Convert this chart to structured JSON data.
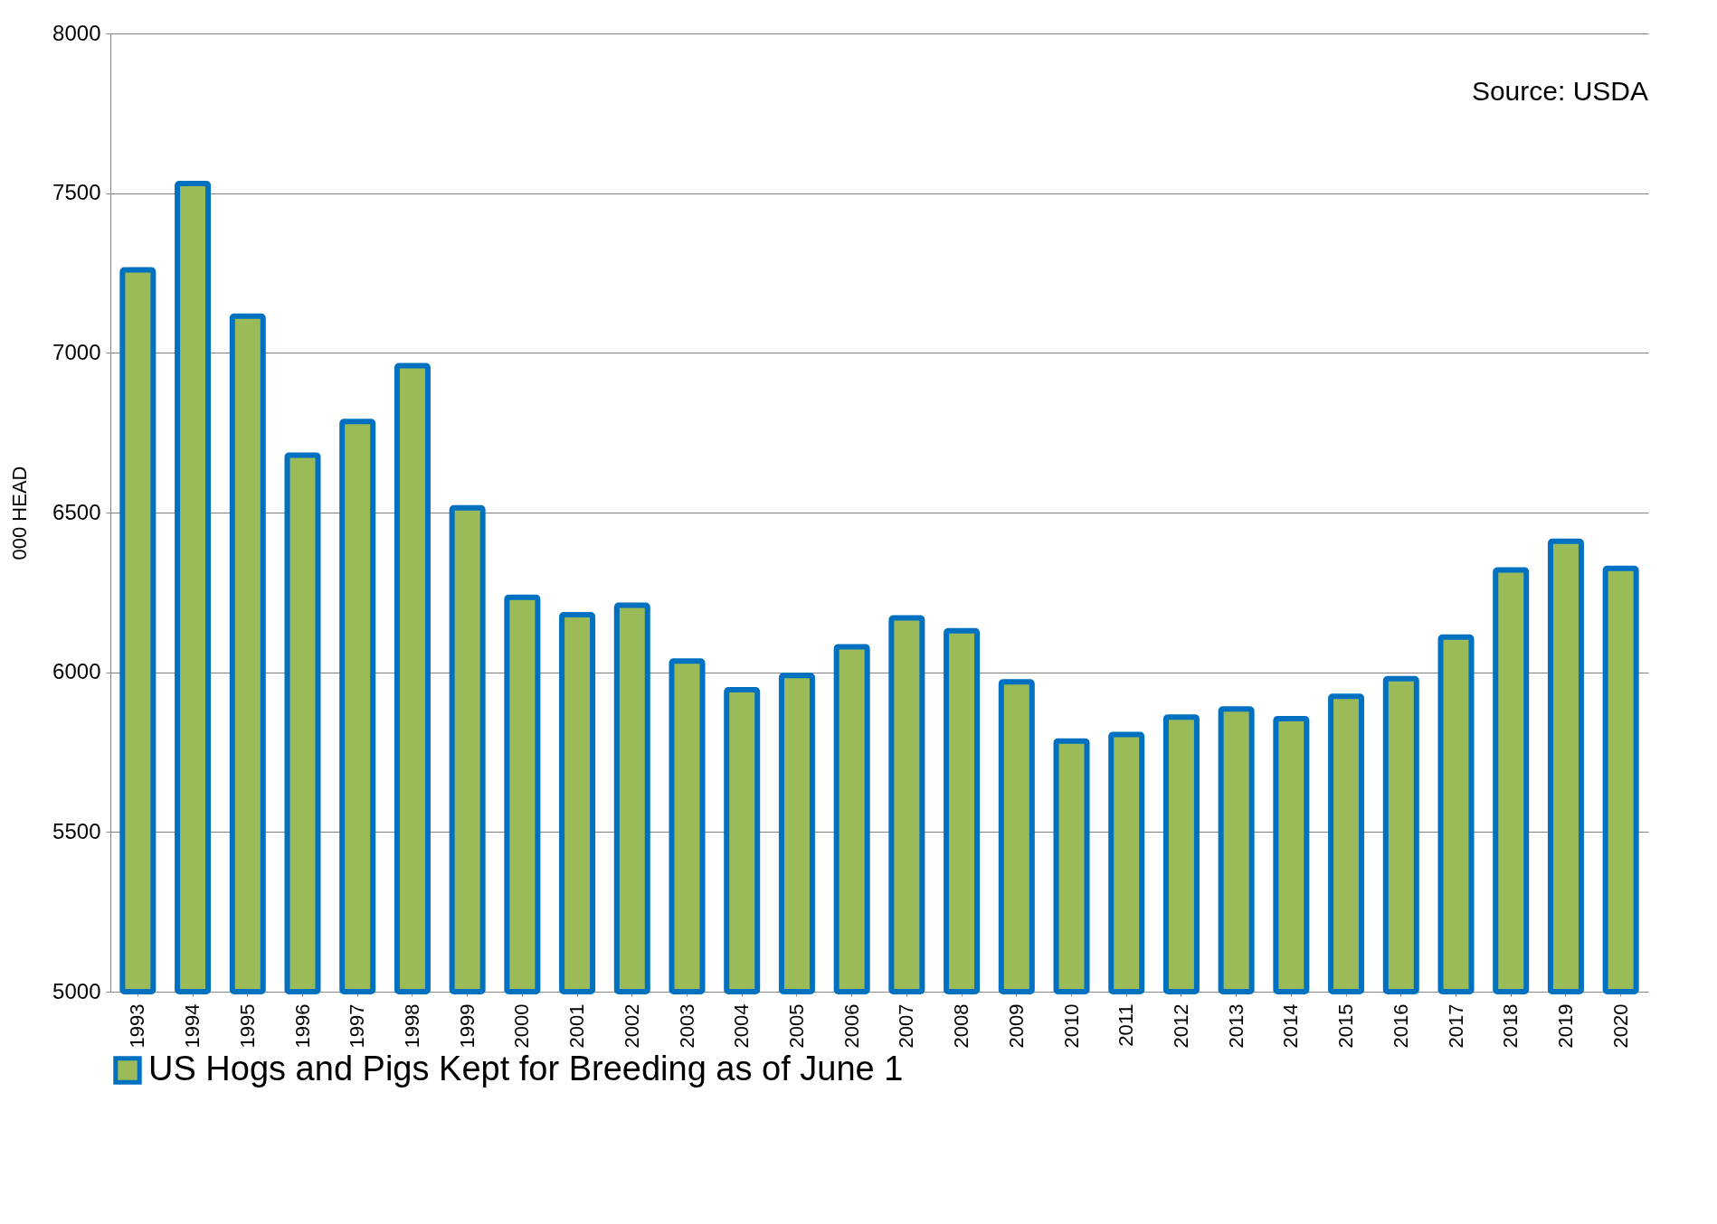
{
  "chart_data": {
    "type": "bar",
    "ylabel": "000 HEAD",
    "categories": [
      "1993",
      "1994",
      "1995",
      "1996",
      "1997",
      "1998",
      "1999",
      "2000",
      "2001",
      "2002",
      "2003",
      "2004",
      "2005",
      "2006",
      "2007",
      "2008",
      "2009",
      "2010",
      "2011",
      "2012",
      "2013",
      "2014",
      "2015",
      "2016",
      "2017",
      "2018",
      "2019",
      "2020"
    ],
    "series": [
      {
        "name": "US Hogs and Pigs Kept for Breeding as of June 1",
        "color": "#9bbb59",
        "values": [
          7260,
          7530,
          7115,
          6680,
          6785,
          6960,
          6515,
          6235,
          6180,
          6210,
          6035,
          5945,
          5990,
          6080,
          6170,
          6130,
          5970,
          5785,
          5805,
          5860,
          5885,
          5855,
          5925,
          5980,
          6110,
          6320,
          6410,
          6325
        ]
      }
    ],
    "ylim": [
      5000,
      8000
    ],
    "yticks": [
      5000,
      5500,
      6000,
      6500,
      7000,
      7500,
      8000
    ],
    "grid": "y",
    "legend": "bottom",
    "annotations": [
      "Source: USDA"
    ]
  }
}
